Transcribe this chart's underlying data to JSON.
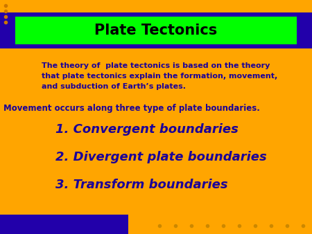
{
  "background_color": "#FFA500",
  "title_text": "Plate Tectonics",
  "title_bg_color": "#00FF00",
  "title_bar_color": "#2200AA",
  "title_text_color": "#000000",
  "body_text_color": "#1a0099",
  "body_intro": "The theory of  plate tectonics is based on the theory\nthat plate tectonics explain the formation, movement,\nand subduction of Earth’s plates.",
  "movement_text": "Movement occurs along three type of plate boundaries.",
  "items": [
    "1. Convergent boundaries",
    "2. Divergent plate boundaries",
    "3. Transform boundaries"
  ],
  "dot_color_left": "#cc7700",
  "dot_color_bottom": "#cc8800",
  "bottom_bar_color": "#2200AA"
}
